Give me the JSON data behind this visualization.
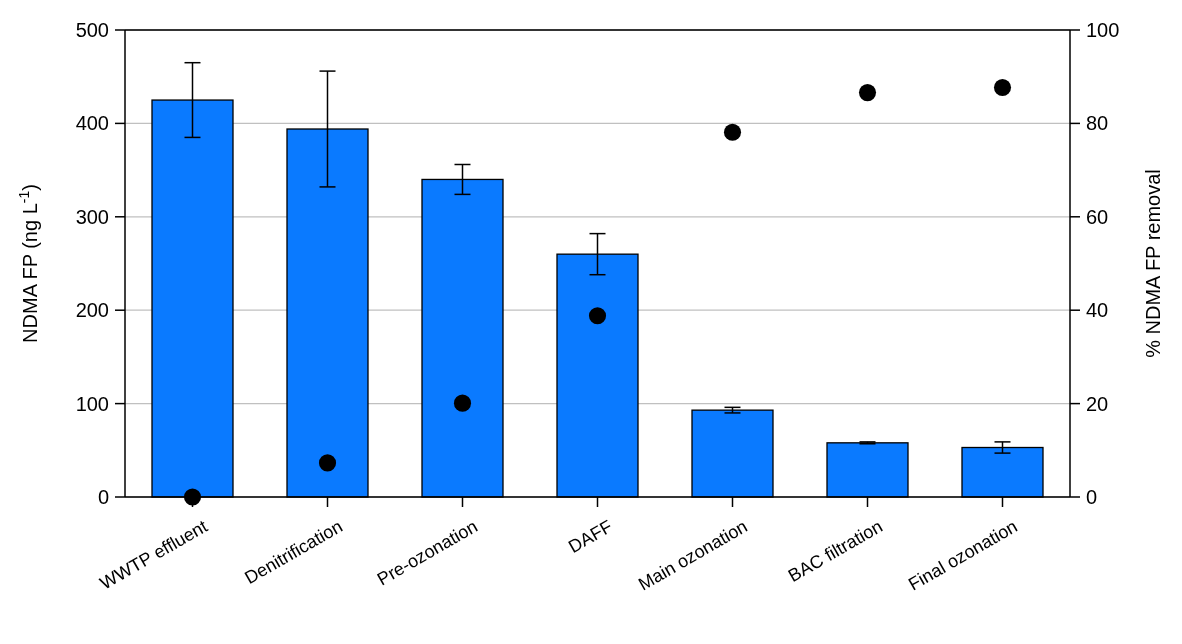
{
  "chart_data": {
    "type": "bar",
    "ylabel": "NDMA FP (ng L$^{-1}$)",
    "y2label": "% NDMA FP removal",
    "categories": [
      "WWTP effluent",
      "Denitrification",
      "Pre-ozonation",
      "DAFF",
      "Main ozonation",
      "BAC filtration",
      "Final ozonation"
    ],
    "series": [
      {
        "color": "#0a7aff",
        "values": [
          425,
          394,
          340,
          260,
          93,
          58,
          53
        ],
        "errors": [
          40,
          62,
          16,
          22,
          3,
          1,
          6
        ]
      },
      {
        "type": "scatter",
        "axis": "y2",
        "color": "#000000",
        "marker": "circle",
        "values": [
          0,
          7.3,
          20.1,
          38.8,
          78.1,
          86.6,
          87.7
        ]
      }
    ],
    "ylim": [
      0,
      500
    ],
    "yticks": [
      0,
      100,
      200,
      300,
      400,
      500
    ],
    "y2lim": [
      0,
      100
    ],
    "y2ticks": [
      0,
      20,
      40,
      60,
      80,
      100
    ],
    "grid": "y"
  }
}
